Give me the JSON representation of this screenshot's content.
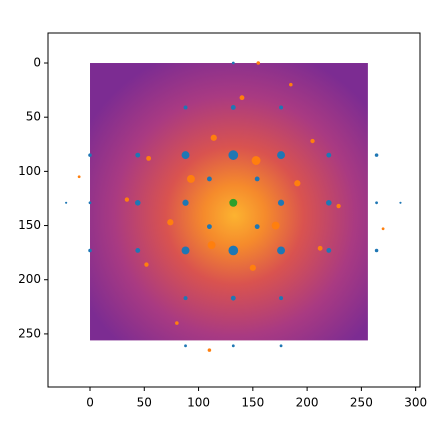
{
  "chart_data": {
    "type": "image_scatter",
    "extent": [
      0,
      256,
      256,
      0
    ],
    "xlim": [
      -38.7,
      304
    ],
    "ylim": [
      299,
      -27.7
    ],
    "xticks": [
      0,
      50,
      100,
      150,
      200,
      250,
      300
    ],
    "yticks": [
      0,
      50,
      100,
      150,
      200,
      250
    ],
    "series": [
      {
        "color": "#1f77b4",
        "x": [
          132,
          88,
          176,
          88,
          176,
          132,
          44,
          220,
          44,
          220,
          44,
          220,
          110,
          154,
          110,
          154,
          88,
          176,
          132,
          132,
          88,
          176,
          88,
          176,
          0,
          264,
          0,
          264,
          132,
          132,
          88,
          176,
          -22,
          286,
          0,
          264
        ],
        "values": [
          85,
          85,
          85,
          173,
          173,
          173,
          129,
          129,
          85,
          85,
          173,
          173,
          107,
          107,
          151,
          151,
          129,
          129,
          41,
          217,
          41,
          41,
          217,
          217,
          85,
          85,
          173,
          173,
          0,
          261,
          261,
          261,
          129,
          129,
          129,
          129
        ],
        "sizes": [
          60,
          40,
          40,
          40,
          40,
          60,
          20,
          20,
          15,
          15,
          15,
          15,
          15,
          15,
          15,
          15,
          25,
          25,
          15,
          15,
          10,
          10,
          10,
          10,
          8,
          8,
          8,
          8,
          5,
          5,
          5,
          5,
          3,
          3,
          5,
          5
        ]
      },
      {
        "color": "#ff7f0e",
        "x": [
          140,
          153,
          93,
          171,
          112,
          114,
          74,
          191,
          150,
          54,
          212,
          34,
          229,
          52,
          205,
          80,
          185,
          110,
          155,
          -10,
          270
        ],
        "values": [
          32,
          90,
          107,
          150,
          168,
          69,
          147,
          111,
          189,
          88,
          171,
          126,
          132,
          186,
          72,
          240,
          20,
          265,
          0,
          105,
          153
        ],
        "sizes": [
          15,
          50,
          40,
          40,
          40,
          25,
          25,
          25,
          25,
          15,
          15,
          12,
          12,
          12,
          12,
          8,
          8,
          8,
          8,
          5,
          5
        ]
      },
      {
        "color": "#2ca02c",
        "x": [
          132
        ],
        "values": [
          129
        ],
        "sizes": [
          40
        ]
      }
    ]
  }
}
